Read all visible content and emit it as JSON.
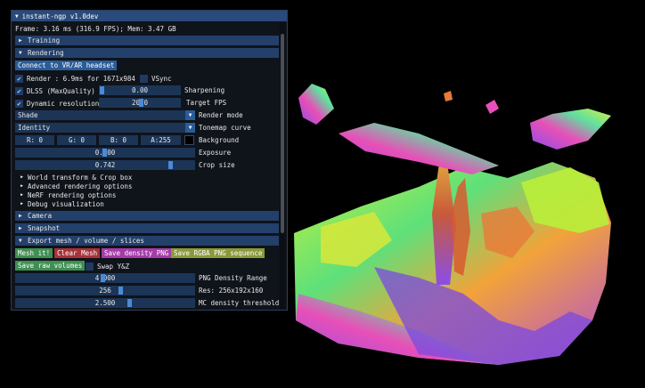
{
  "window": {
    "title": "instant-ngp v1.0dev"
  },
  "stats": "Frame: 3.16 ms (316.9 FPS); Mem: 3.47 GB",
  "sections": {
    "training": "Training",
    "rendering": "Rendering",
    "camera": "Camera",
    "snapshot": "Snapshot",
    "export": "Export mesh / volume / slices"
  },
  "rendering": {
    "vr_button": "Connect to VR/AR headset",
    "render_label": "Render : 6.9ms for 1671x984",
    "vsync": "VSync",
    "dlss": "DLSS (MaxQuality)",
    "sharpening_value": "0.00",
    "sharpening": "Sharpening",
    "dynres": "Dynamic resolution",
    "target_fps_value": "20.0",
    "target_fps": "Target FPS",
    "render_mode_value": "Shade",
    "render_mode": "Render mode",
    "tonemap_value": "Identity",
    "tonemap": "Tonemap curve",
    "bg_r": "R:  0",
    "bg_g": "G:  0",
    "bg_b": "B:  0",
    "bg_a": "A:255",
    "background": "Background",
    "exposure_value": "0.000",
    "exposure": "Exposure",
    "crop_value": "0.742",
    "crop": "Crop size",
    "tree": [
      "World transform & Crop box",
      "Advanced rendering options",
      "NeRF rendering options",
      "Debug visualization"
    ]
  },
  "export": {
    "mesh_it": "Mesh it!",
    "clear_mesh": "Clear Mesh",
    "save_density": "Save density PNG",
    "save_rgba": "Save RGBA PNG sequence",
    "save_raw": "Save raw volumes",
    "swap": "Swap Y&Z",
    "png_density_value": "4.000",
    "png_density": "PNG Density Range",
    "res_value": "256",
    "res": "Res: 256x192x160",
    "mc_value": "2.500",
    "mc": "MC density threshold"
  },
  "colors": {
    "mesh_it": "#3f8f52",
    "clear_mesh": "#a8323a",
    "save_density": "#a53ba8",
    "save_rgba": "#8a9a3a",
    "save_raw": "#3f8f52"
  }
}
